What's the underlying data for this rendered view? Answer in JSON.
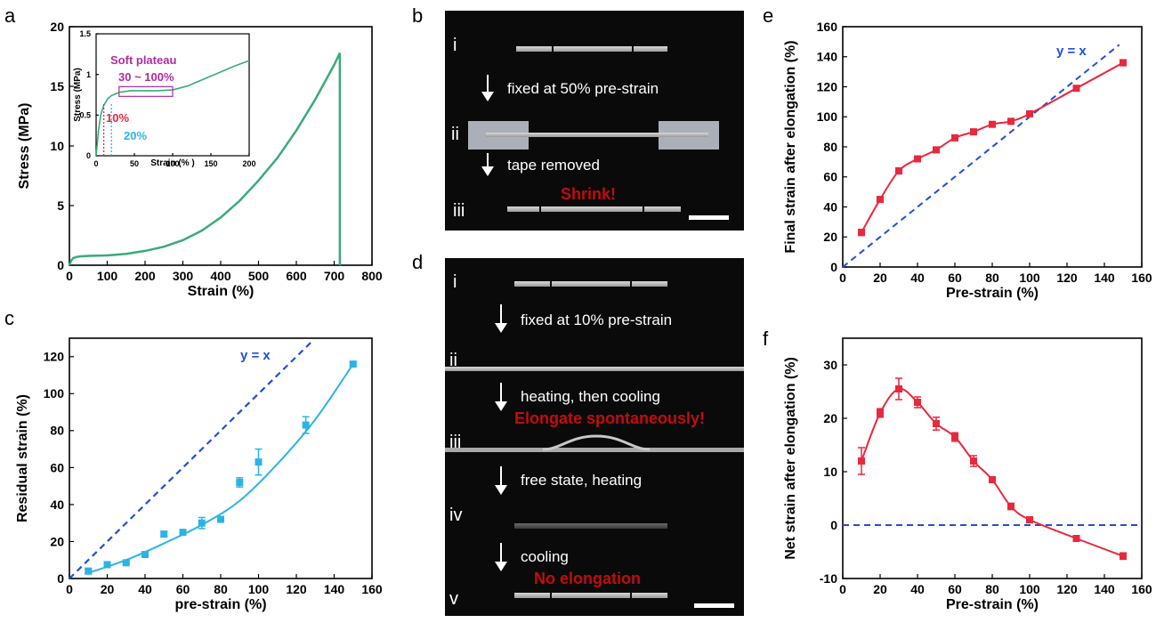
{
  "panels": {
    "a": "a",
    "b": "b",
    "c": "c",
    "d": "d",
    "e": "e",
    "f": "f"
  },
  "colors": {
    "green": "#3aaa7a",
    "cyan": "#2ab4e6",
    "red": "#e8283c",
    "blue": "#1f4fd6",
    "magenta": "#b02ca0",
    "dark_red": "#c00d0d"
  },
  "panel_b": {
    "labels": [
      "i",
      "ii",
      "iii"
    ],
    "step1": "fixed at 50% pre-strain",
    "step2": "tape removed",
    "highlight": "Shrink!"
  },
  "panel_d": {
    "labels": [
      "i",
      "ii",
      "iii",
      "iv",
      "v"
    ],
    "step1": "fixed at 10% pre-strain",
    "step2": "heating, then cooling",
    "highlight1": "Elongate spontaneously!",
    "step3": "free state, heating",
    "step4": "cooling",
    "highlight2": "No elongation"
  },
  "chart_data": [
    {
      "panel": "a",
      "type": "line",
      "xlabel": "Strain (%)",
      "ylabel": "Stress (MPa)",
      "xlim": [
        0,
        800
      ],
      "ylim": [
        0,
        20
      ],
      "xticks": [
        0,
        100,
        200,
        300,
        400,
        500,
        600,
        700,
        800
      ],
      "yticks": [
        0,
        5,
        10,
        15,
        20
      ],
      "series": [
        {
          "x": [
            0,
            5,
            10,
            20,
            30,
            50,
            100,
            150,
            200,
            250,
            300,
            350,
            400,
            450,
            500,
            550,
            600,
            650,
            700,
            715,
            715
          ],
          "y": [
            0,
            0.4,
            0.6,
            0.7,
            0.75,
            0.78,
            0.82,
            0.95,
            1.2,
            1.55,
            2.1,
            2.9,
            4.0,
            5.4,
            7.1,
            9.0,
            11.3,
            13.9,
            16.8,
            17.8,
            0
          ]
        }
      ],
      "inset": {
        "xlabel": "Strain (% )",
        "ylabel": "Stress (MPa)",
        "xlim": [
          0,
          200
        ],
        "ylim": [
          0,
          1.5
        ],
        "xticks": [
          0,
          50,
          100,
          150,
          200
        ],
        "yticks": [
          0.0,
          0.5,
          1.0,
          1.5
        ],
        "series": [
          {
            "x": [
              0,
              3,
              6,
              10,
              15,
              20,
              30,
              45,
              60,
              80,
              100,
              120,
              140,
              160,
              180,
              200
            ],
            "y": [
              0,
              0.3,
              0.5,
              0.62,
              0.7,
              0.74,
              0.78,
              0.8,
              0.8,
              0.8,
              0.81,
              0.86,
              0.94,
              1.02,
              1.1,
              1.17
            ]
          }
        ],
        "annotations": [
          {
            "text": "Soft plateau",
            "color": "#b02ca0"
          },
          {
            "text": "30 ~ 100%",
            "color": "#b02ca0"
          },
          {
            "text": "10%",
            "color": "#e8283c"
          },
          {
            "text": "20%",
            "color": "#2ab4e6"
          }
        ],
        "markers": [
          {
            "x": 10,
            "color": "#e8283c"
          },
          {
            "x": 20,
            "color": "#2ab4e6"
          }
        ],
        "box": {
          "x0": 30,
          "x1": 100,
          "y0": 0.73,
          "y1": 0.85
        }
      }
    },
    {
      "panel": "c",
      "type": "scatter",
      "xlabel": "pre-strain (%)",
      "ylabel": "Residual strain (%)",
      "xlim": [
        0,
        160
      ],
      "ylim": [
        0,
        130
      ],
      "xticks": [
        0,
        20,
        40,
        60,
        80,
        100,
        120,
        140,
        160
      ],
      "yticks": [
        0,
        20,
        40,
        60,
        80,
        100,
        120
      ],
      "points": {
        "x": [
          10,
          20,
          30,
          40,
          50,
          60,
          70,
          80,
          90,
          100,
          125,
          150
        ],
        "y": [
          4,
          7.5,
          8.5,
          13,
          24,
          25,
          30,
          32,
          52,
          63,
          83,
          116
        ],
        "err": [
          1.5,
          1,
          1,
          1,
          1.5,
          1,
          3,
          1,
          2.5,
          7,
          4.5,
          1
        ]
      },
      "fit": {
        "x": [
          10,
          30,
          50,
          70,
          90,
          110,
          130,
          150
        ],
        "y": [
          3,
          10,
          19,
          29,
          42,
          62,
          86,
          116
        ]
      },
      "ref_line": {
        "label": "y = x"
      }
    },
    {
      "panel": "e",
      "type": "line",
      "xlabel": "Pre-strain (%)",
      "ylabel": "Final strain after elongation (%)",
      "xlim": [
        0,
        160
      ],
      "ylim": [
        0,
        160
      ],
      "xticks": [
        0,
        20,
        40,
        60,
        80,
        100,
        120,
        140,
        160
      ],
      "yticks": [
        0,
        20,
        40,
        60,
        80,
        100,
        120,
        140,
        160
      ],
      "points": {
        "x": [
          10,
          20,
          30,
          40,
          50,
          60,
          70,
          80,
          90,
          100,
          125,
          150
        ],
        "y": [
          23,
          45,
          64,
          72,
          78,
          86,
          90,
          95,
          97,
          102,
          119,
          136
        ],
        "err": [
          2,
          1,
          2,
          1,
          1,
          1,
          1,
          1,
          1,
          1,
          1,
          2
        ]
      },
      "ref_line": {
        "label": "y = x"
      }
    },
    {
      "panel": "f",
      "type": "line",
      "xlabel": "Pre-strain (%)",
      "ylabel": "Net strain after elongation (%)",
      "xlim": [
        0,
        160
      ],
      "ylim": [
        -10,
        35
      ],
      "xticks": [
        0,
        20,
        40,
        60,
        80,
        100,
        120,
        140,
        160
      ],
      "yticks": [
        -10,
        0,
        10,
        20,
        30
      ],
      "points": {
        "x": [
          10,
          20,
          30,
          40,
          50,
          60,
          70,
          80,
          90,
          100,
          125,
          150
        ],
        "y": [
          12,
          21,
          25.5,
          23,
          19,
          16.5,
          12,
          8.5,
          3.5,
          1,
          -2.5,
          -5.8
        ],
        "err": [
          2.5,
          0.8,
          2,
          1,
          1.2,
          0.8,
          1,
          0.5,
          0.6,
          0.5,
          0.5,
          0.6
        ]
      },
      "zero_line": true
    }
  ]
}
